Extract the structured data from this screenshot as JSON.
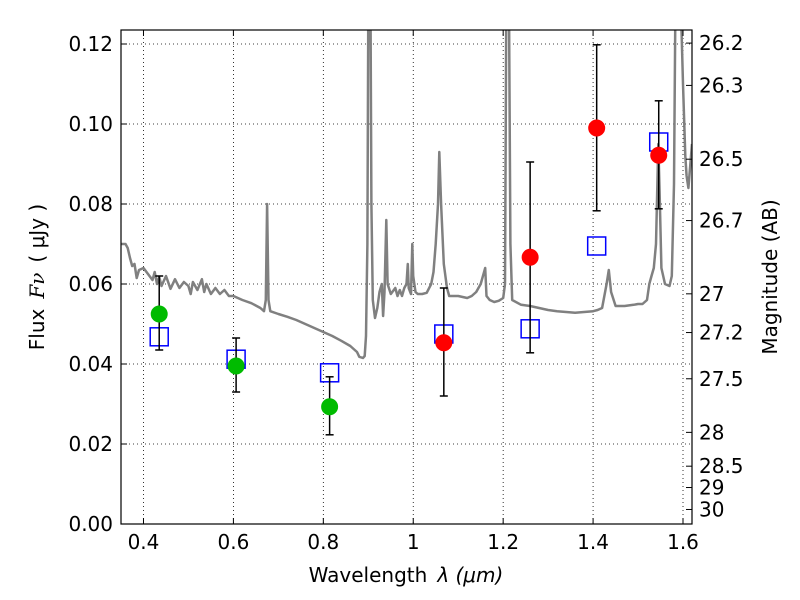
{
  "chart_data": {
    "type": "scatter",
    "title": "",
    "xlabel_text": "Wavelength",
    "xlabel_math": "λ (μm)",
    "ylabel_text": "Flux",
    "ylabel_math": "Fν",
    "ylabel_unit": "( μJy )",
    "y2label": "Magnitude (AB)",
    "xlim": [
      0.35,
      1.62
    ],
    "ylim": [
      0.0,
      0.1235
    ],
    "grid": true,
    "x_ticks": [
      0.4,
      0.6,
      0.8,
      1.0,
      1.2,
      1.4,
      1.6
    ],
    "x_tick_labels": [
      "0.4",
      "0.6",
      "0.8",
      "1",
      "1.2",
      "1.4",
      "1.6"
    ],
    "y_ticks": [
      0.0,
      0.02,
      0.04,
      0.06,
      0.08,
      0.1,
      0.12
    ],
    "y_tick_labels": [
      "0.00",
      "0.02",
      "0.04",
      "0.06",
      "0.08",
      "0.10",
      "0.12"
    ],
    "magnitude_ticks": [
      {
        "label": "26.2",
        "mag": 26.2
      },
      {
        "label": "26.3",
        "mag": 26.3
      },
      {
        "label": "26.5",
        "mag": 26.5
      },
      {
        "label": "26.7",
        "mag": 26.7
      },
      {
        "label": "27",
        "mag": 27.0
      },
      {
        "label": "27.2",
        "mag": 27.2
      },
      {
        "label": "27.5",
        "mag": 27.5
      },
      {
        "label": "28",
        "mag": 28.0
      },
      {
        "label": "28.5",
        "mag": 28.5
      },
      {
        "label": "29",
        "mag": 29.0
      },
      {
        "label": "30",
        "mag": 30.0
      }
    ],
    "series": [
      {
        "kind": "observed",
        "color": "#00bb00",
        "marker": "circle",
        "points": [
          {
            "x": 0.435,
            "y": 0.0525,
            "err_lo": 0.0435,
            "err_hi": 0.062
          },
          {
            "x": 0.606,
            "y": 0.0395,
            "err_lo": 0.033,
            "err_hi": 0.0465
          },
          {
            "x": 0.814,
            "y": 0.0293,
            "err_lo": 0.0223,
            "err_hi": 0.0368
          }
        ]
      },
      {
        "kind": "observed",
        "color": "#ff0000",
        "marker": "circle",
        "points": [
          {
            "x": 1.068,
            "y": 0.0453,
            "err_lo": 0.032,
            "err_hi": 0.059
          },
          {
            "x": 1.26,
            "y": 0.0667,
            "err_lo": 0.0428,
            "err_hi": 0.0905
          },
          {
            "x": 1.408,
            "y": 0.099,
            "err_lo": 0.0783,
            "err_hi": 0.1198
          },
          {
            "x": 1.546,
            "y": 0.0922,
            "err_lo": 0.0788,
            "err_hi": 0.1058
          }
        ]
      },
      {
        "kind": "model",
        "color": "#0000ff",
        "marker": "square",
        "points": [
          {
            "x": 0.435,
            "y": 0.0468
          },
          {
            "x": 0.606,
            "y": 0.0412
          },
          {
            "x": 0.814,
            "y": 0.0378
          },
          {
            "x": 1.068,
            "y": 0.0475
          },
          {
            "x": 1.26,
            "y": 0.0488
          },
          {
            "x": 1.408,
            "y": 0.0695
          },
          {
            "x": 1.546,
            "y": 0.0955
          }
        ]
      }
    ],
    "spectrum": {
      "color": "#808080",
      "points": [
        [
          0.35,
          0.07
        ],
        [
          0.36,
          0.07
        ],
        [
          0.365,
          0.069
        ],
        [
          0.37,
          0.0665
        ],
        [
          0.375,
          0.0645
        ],
        [
          0.38,
          0.065
        ],
        [
          0.385,
          0.0615
        ],
        [
          0.39,
          0.0635
        ],
        [
          0.4,
          0.064
        ],
        [
          0.41,
          0.0625
        ],
        [
          0.42,
          0.061
        ],
        [
          0.425,
          0.063
        ],
        [
          0.43,
          0.06
        ],
        [
          0.435,
          0.0618
        ],
        [
          0.44,
          0.0595
        ],
        [
          0.45,
          0.062
        ],
        [
          0.46,
          0.0588
        ],
        [
          0.47,
          0.0612
        ],
        [
          0.48,
          0.059
        ],
        [
          0.49,
          0.0605
        ],
        [
          0.5,
          0.0595
        ],
        [
          0.505,
          0.0575
        ],
        [
          0.51,
          0.0605
        ],
        [
          0.52,
          0.0585
        ],
        [
          0.53,
          0.0612
        ],
        [
          0.535,
          0.058
        ],
        [
          0.54,
          0.06
        ],
        [
          0.55,
          0.0575
        ],
        [
          0.56,
          0.059
        ],
        [
          0.57,
          0.0575
        ],
        [
          0.58,
          0.0585
        ],
        [
          0.59,
          0.057
        ],
        [
          0.6,
          0.057
        ],
        [
          0.62,
          0.056
        ],
        [
          0.64,
          0.0552
        ],
        [
          0.66,
          0.054
        ],
        [
          0.668,
          0.0532
        ],
        [
          0.672,
          0.056
        ],
        [
          0.675,
          0.08
        ],
        [
          0.678,
          0.056
        ],
        [
          0.682,
          0.0532
        ],
        [
          0.7,
          0.0525
        ],
        [
          0.72,
          0.0518
        ],
        [
          0.74,
          0.051
        ],
        [
          0.76,
          0.05
        ],
        [
          0.78,
          0.049
        ],
        [
          0.8,
          0.048
        ],
        [
          0.82,
          0.047
        ],
        [
          0.84,
          0.0458
        ],
        [
          0.86,
          0.0445
        ],
        [
          0.875,
          0.043
        ],
        [
          0.88,
          0.0418
        ],
        [
          0.888,
          0.0415
        ],
        [
          0.892,
          0.042
        ],
        [
          0.895,
          0.047
        ],
        [
          0.898,
          0.07
        ],
        [
          0.9,
          0.13
        ],
        [
          0.905,
          0.13
        ],
        [
          0.907,
          0.08
        ],
        [
          0.91,
          0.056
        ],
        [
          0.915,
          0.0515
        ],
        [
          0.92,
          0.054
        ],
        [
          0.925,
          0.058
        ],
        [
          0.93,
          0.06
        ],
        [
          0.933,
          0.052
        ],
        [
          0.936,
          0.058
        ],
        [
          0.94,
          0.076
        ],
        [
          0.943,
          0.06
        ],
        [
          0.95,
          0.0575
        ],
        [
          0.96,
          0.059
        ],
        [
          0.965,
          0.057
        ],
        [
          0.97,
          0.0585
        ],
        [
          0.975,
          0.057
        ],
        [
          0.98,
          0.059
        ],
        [
          0.985,
          0.06
        ],
        [
          0.988,
          0.065
        ],
        [
          0.99,
          0.059
        ],
        [
          0.995,
          0.0575
        ],
        [
          0.998,
          0.07
        ],
        [
          1.0,
          0.062
        ],
        [
          1.005,
          0.058
        ],
        [
          1.01,
          0.0575
        ],
        [
          1.02,
          0.0575
        ],
        [
          1.03,
          0.0578
        ],
        [
          1.04,
          0.06
        ],
        [
          1.045,
          0.063
        ],
        [
          1.05,
          0.07
        ],
        [
          1.055,
          0.08
        ],
        [
          1.058,
          0.093
        ],
        [
          1.062,
          0.08
        ],
        [
          1.068,
          0.065
        ],
        [
          1.075,
          0.059
        ],
        [
          1.08,
          0.057
        ],
        [
          1.1,
          0.057
        ],
        [
          1.12,
          0.0565
        ],
        [
          1.13,
          0.057
        ],
        [
          1.14,
          0.058
        ],
        [
          1.15,
          0.06
        ],
        [
          1.16,
          0.064
        ],
        [
          1.163,
          0.057
        ],
        [
          1.17,
          0.056
        ],
        [
          1.18,
          0.0555
        ],
        [
          1.19,
          0.0558
        ],
        [
          1.2,
          0.0565
        ],
        [
          1.204,
          0.06
        ],
        [
          1.207,
          0.13
        ],
        [
          1.213,
          0.13
        ],
        [
          1.216,
          0.07
        ],
        [
          1.22,
          0.056
        ],
        [
          1.24,
          0.0548
        ],
        [
          1.26,
          0.0545
        ],
        [
          1.28,
          0.054
        ],
        [
          1.3,
          0.0535
        ],
        [
          1.32,
          0.0532
        ],
        [
          1.34,
          0.053
        ],
        [
          1.36,
          0.0528
        ],
        [
          1.38,
          0.053
        ],
        [
          1.4,
          0.0532
        ],
        [
          1.41,
          0.0535
        ],
        [
          1.42,
          0.054
        ],
        [
          1.43,
          0.06
        ],
        [
          1.435,
          0.0635
        ],
        [
          1.44,
          0.058
        ],
        [
          1.45,
          0.0545
        ],
        [
          1.47,
          0.0545
        ],
        [
          1.49,
          0.0548
        ],
        [
          1.5,
          0.055
        ],
        [
          1.51,
          0.055
        ],
        [
          1.52,
          0.056
        ],
        [
          1.525,
          0.06
        ],
        [
          1.53,
          0.062
        ],
        [
          1.535,
          0.064
        ],
        [
          1.54,
          0.07
        ],
        [
          1.545,
          0.095
        ],
        [
          1.548,
          0.083
        ],
        [
          1.552,
          0.064
        ],
        [
          1.56,
          0.06
        ],
        [
          1.57,
          0.0595
        ],
        [
          1.575,
          0.062
        ],
        [
          1.58,
          0.085
        ],
        [
          1.583,
          0.13
        ],
        [
          1.595,
          0.13
        ],
        [
          1.6,
          0.11
        ],
        [
          1.605,
          0.092
        ],
        [
          1.608,
          0.087
        ],
        [
          1.612,
          0.084
        ],
        [
          1.62,
          0.095
        ]
      ]
    }
  }
}
